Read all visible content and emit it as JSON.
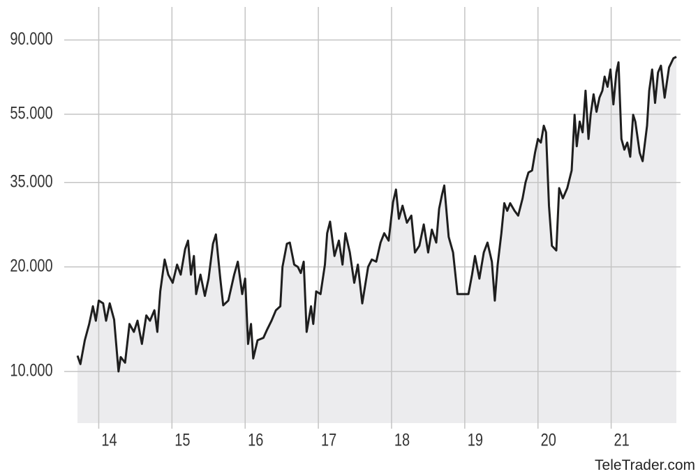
{
  "chart_data": {
    "type": "line",
    "log_y": true,
    "grid": true,
    "fill": "#ececee",
    "xlim": [
      13.7,
      21.9
    ],
    "xticks": [
      14,
      15,
      16,
      17,
      18,
      19,
      20,
      21
    ],
    "ylim": [
      7100,
      112000
    ],
    "yticks": [
      {
        "value": 10000,
        "label": "10.000"
      },
      {
        "value": 20000,
        "label": "20.000"
      },
      {
        "value": 35000,
        "label": "35.000"
      },
      {
        "value": 55000,
        "label": "55.000"
      },
      {
        "value": 90000,
        "label": "90.000"
      }
    ],
    "series": [
      {
        "color": "#1e1e1e",
        "x": [
          13.71,
          13.75,
          13.81,
          13.87,
          13.92,
          13.96,
          14.0,
          14.06,
          14.1,
          14.15,
          14.21,
          14.27,
          14.3,
          14.36,
          14.42,
          14.48,
          14.53,
          14.59,
          14.65,
          14.7,
          14.76,
          14.8,
          14.84,
          14.9,
          14.95,
          15.01,
          15.07,
          15.12,
          15.18,
          15.22,
          15.26,
          15.3,
          15.33,
          15.39,
          15.45,
          15.5,
          15.56,
          15.6,
          15.66,
          15.7,
          15.77,
          15.85,
          15.9,
          15.96,
          16.0,
          16.04,
          16.08,
          16.11,
          16.17,
          16.25,
          16.3,
          16.36,
          16.42,
          16.48,
          16.51,
          16.57,
          16.61,
          16.67,
          16.72,
          16.76,
          16.8,
          16.84,
          16.9,
          16.93,
          16.97,
          17.03,
          17.09,
          17.12,
          17.16,
          17.22,
          17.28,
          17.33,
          17.37,
          17.43,
          17.49,
          17.54,
          17.6,
          17.68,
          17.73,
          17.79,
          17.85,
          17.9,
          17.96,
          18.02,
          18.06,
          18.1,
          18.15,
          18.21,
          18.27,
          18.32,
          18.38,
          18.44,
          18.5,
          18.55,
          18.61,
          18.65,
          18.69,
          18.72,
          18.78,
          18.84,
          18.9,
          19.05,
          19.1,
          19.14,
          19.2,
          19.26,
          19.31,
          19.37,
          19.41,
          19.45,
          19.5,
          19.54,
          19.58,
          19.62,
          19.68,
          19.73,
          19.79,
          19.83,
          19.87,
          19.92,
          19.96,
          20.0,
          20.04,
          20.08,
          20.11,
          20.15,
          20.19,
          20.25,
          20.29,
          20.34,
          20.4,
          20.46,
          20.5,
          20.53,
          20.57,
          20.61,
          20.65,
          20.69,
          20.72,
          20.76,
          20.8,
          20.84,
          20.88,
          20.91,
          20.95,
          20.99,
          21.03,
          21.07,
          21.1,
          21.14,
          21.18,
          21.22,
          21.26,
          21.3,
          21.33,
          21.39,
          21.43,
          21.49,
          21.52,
          21.56,
          21.6,
          21.64,
          21.68,
          21.73,
          21.79,
          21.85,
          21.89
        ],
        "values": [
          11100,
          10500,
          12300,
          13700,
          15400,
          14000,
          16000,
          15700,
          14000,
          15700,
          14100,
          10000,
          11000,
          10600,
          13700,
          13000,
          14000,
          12000,
          14500,
          14000,
          15000,
          13000,
          17000,
          21000,
          19000,
          18000,
          20300,
          19000,
          22500,
          23800,
          19000,
          21500,
          16700,
          19000,
          16500,
          18500,
          23300,
          24800,
          18500,
          15500,
          16000,
          19000,
          20700,
          16700,
          18500,
          12000,
          13700,
          10900,
          12300,
          12500,
          13200,
          14000,
          15000,
          15400,
          20000,
          23300,
          23500,
          20300,
          20000,
          19200,
          20700,
          13000,
          15400,
          13700,
          17000,
          16700,
          20300,
          25000,
          27000,
          21500,
          23800,
          20300,
          25000,
          22000,
          18000,
          20300,
          15700,
          20000,
          21000,
          20700,
          23500,
          25000,
          23800,
          30700,
          33400,
          27500,
          30000,
          26800,
          28100,
          22000,
          23000,
          26500,
          22000,
          25600,
          23500,
          29400,
          32300,
          34300,
          24400,
          22000,
          16700,
          16700,
          19000,
          21500,
          18500,
          22000,
          23500,
          20700,
          16000,
          20300,
          25000,
          30500,
          29000,
          30500,
          29000,
          28100,
          31500,
          35000,
          37400,
          37900,
          42600,
          46700,
          45600,
          51000,
          48800,
          30000,
          23000,
          22300,
          33700,
          31500,
          33700,
          37900,
          54800,
          44500,
          52400,
          48800,
          64300,
          46700,
          54800,
          62800,
          55900,
          61400,
          64300,
          70600,
          66000,
          74000,
          58700,
          72500,
          77600,
          46700,
          43500,
          45600,
          41500,
          54800,
          52400,
          42600,
          40300,
          51000,
          64300,
          74000,
          59300,
          72500,
          75900,
          61400,
          75000,
          79700,
          80500
        ]
      }
    ]
  },
  "watermark": "TeleTrader.com"
}
